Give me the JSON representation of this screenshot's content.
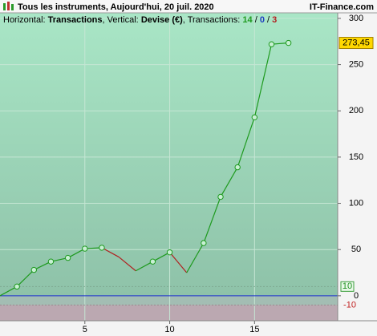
{
  "chart_data": {
    "type": "line",
    "title": "Tous les instruments, Aujourd'hui, 20 juil. 2020",
    "brand": "IT-Finance.com",
    "subtitle": {
      "horizontal_label": "Horizontal:",
      "horizontal": "Transactions",
      "vertical_label": ", Vertical:",
      "vertical": "Devise (€)",
      "count_label": ", Transactions:",
      "wins": 14,
      "flat": 0,
      "losses": 3,
      "separator": "/"
    },
    "x": [
      0,
      1,
      2,
      3,
      4,
      5,
      6,
      7,
      8,
      9,
      10,
      11,
      12,
      13,
      14,
      15,
      16,
      17
    ],
    "values": [
      0,
      10,
      28,
      37,
      41,
      51,
      52,
      42,
      27,
      37,
      47,
      25,
      57,
      107,
      139,
      193,
      272,
      273.45
    ],
    "value_labels": [
      null,
      null,
      null,
      null,
      null,
      null,
      null,
      null,
      null,
      null,
      null,
      null,
      null,
      null,
      null,
      null,
      null,
      "273,45"
    ],
    "gain_color": "#1e9a1e",
    "loss_color": "#b02020",
    "zones": {
      "upper": 10,
      "lower": -10
    },
    "xlim": [
      0,
      19.9
    ],
    "ylim": [
      -27,
      306
    ],
    "xticks": [
      5,
      10,
      15
    ],
    "yticks": [
      0,
      50,
      100,
      150,
      200,
      250,
      300
    ],
    "grid": true
  }
}
